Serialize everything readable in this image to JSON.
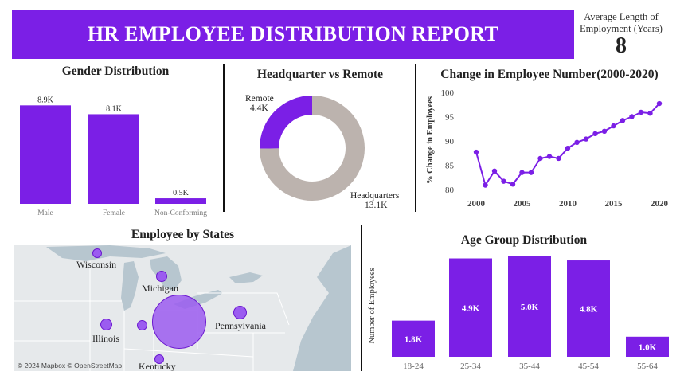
{
  "header": {
    "title": "HR EMPLOYEE DISTRIBUTION REPORT"
  },
  "kpi": {
    "label": "Average Length of Employment (Years)",
    "value": "8"
  },
  "colors": {
    "accent": "#7b1fe6",
    "remote": "#7b1fe6",
    "headquarters": "#bcb3ae"
  },
  "chart_data": [
    {
      "id": "gender",
      "type": "bar",
      "title": "Gender Distribution",
      "categories": [
        "Male",
        "Female",
        "Non-Conforming"
      ],
      "values": [
        8.9,
        8.1,
        0.5
      ],
      "value_labels": [
        "8.9K",
        "8.1K",
        "0.5K"
      ],
      "unit": "K",
      "ylim": [
        0,
        9.5
      ]
    },
    {
      "id": "location",
      "type": "pie",
      "title": "Headquarter vs Remote",
      "categories": [
        "Remote",
        "Headquarters"
      ],
      "values": [
        4.4,
        13.1
      ],
      "value_labels": [
        "4.4K",
        "13.1K"
      ]
    },
    {
      "id": "trend",
      "type": "line",
      "title": "Change in Employee Number(2000-2020)",
      "ylabel": "% Change in Employees",
      "x": [
        2000,
        2001,
        2002,
        2003,
        2004,
        2005,
        2006,
        2007,
        2008,
        2009,
        2010,
        2011,
        2012,
        2013,
        2014,
        2015,
        2016,
        2017,
        2018,
        2019,
        2020
      ],
      "values": [
        87.7,
        80.9,
        83.8,
        81.7,
        81.1,
        83.5,
        83.5,
        86.4,
        86.8,
        86.4,
        88.5,
        89.7,
        90.4,
        91.5,
        92.0,
        93.1,
        94.2,
        95.0,
        95.9,
        95.7,
        97.7
      ],
      "xticks": [
        2000,
        2005,
        2010,
        2015,
        2020
      ],
      "yticks": [
        80,
        85,
        90,
        95,
        100
      ],
      "xlim": [
        2000,
        2020
      ],
      "ylim": [
        80,
        100
      ]
    },
    {
      "id": "age",
      "type": "bar",
      "title": "Age Group Distribution",
      "ylabel": "Number of Employees",
      "categories": [
        "18-24",
        "25-34",
        "35-44",
        "45-54",
        "55-64"
      ],
      "values": [
        1.8,
        4.9,
        5.0,
        4.8,
        1.0
      ],
      "value_labels": [
        "1.8K",
        "4.9K",
        "5.0K",
        "4.8K",
        "1.0K"
      ],
      "ylim": [
        0,
        5.0
      ]
    }
  ],
  "map": {
    "title": "Employee by States",
    "credit": "© 2024 Mapbox © OpenStreetMap",
    "labels": [
      "Wisconsin",
      "Michigan",
      "Illinois",
      "Pennsylvania",
      "Kentucky"
    ]
  }
}
